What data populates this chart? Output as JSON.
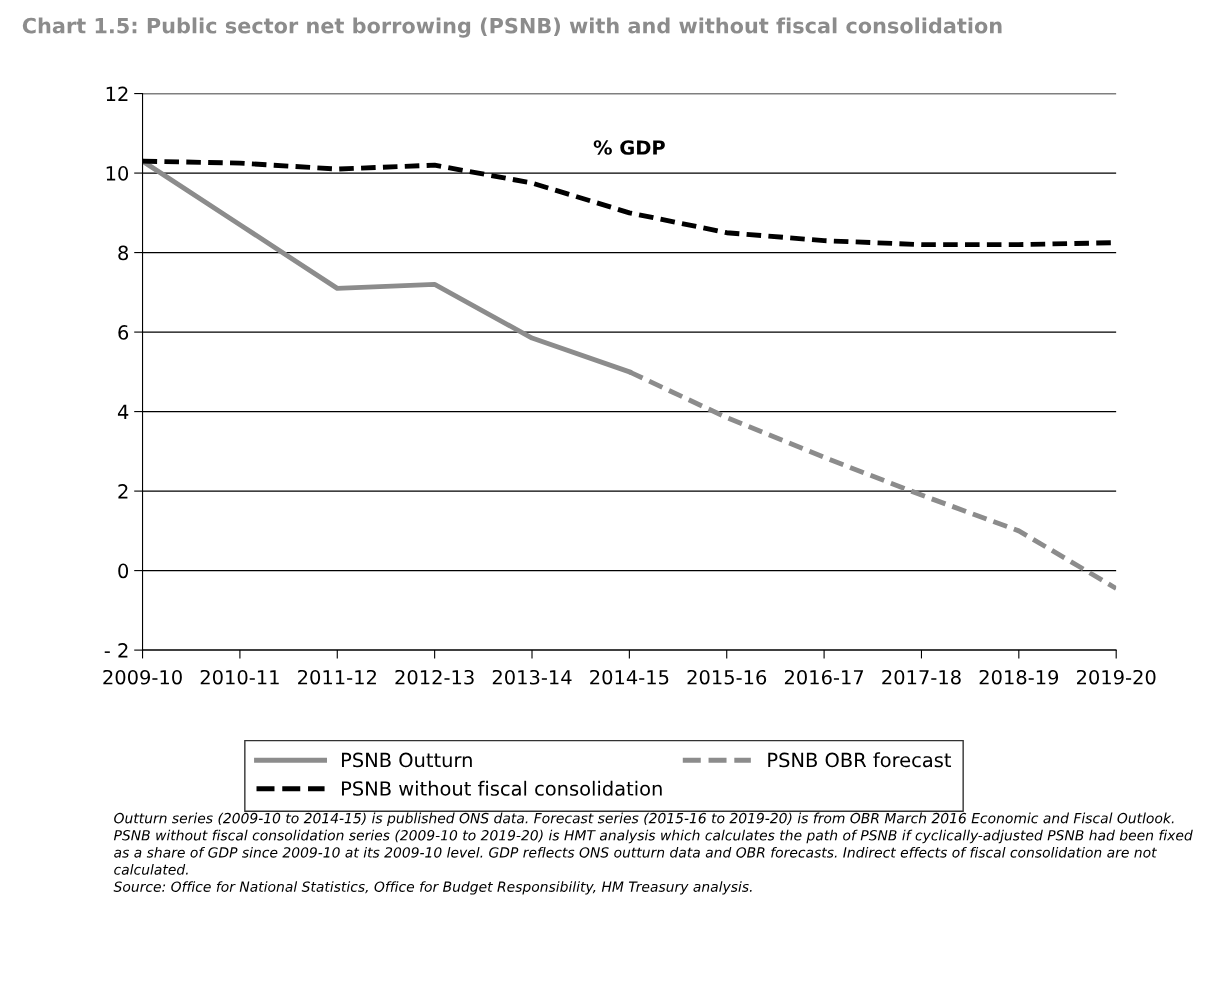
{
  "chart_data": {
    "type": "line",
    "title": "Chart 1.5: Public sector net borrowing (PSNB) with and without fiscal consolidation",
    "categories": [
      "2009-10",
      "2010-11",
      "2011-12",
      "2012-13",
      "2013-14",
      "2014-15",
      "2015-16",
      "2016-17",
      "2017-18",
      "2018-19",
      "2019-20"
    ],
    "series": [
      {
        "name": "PSNB Outturn",
        "color": "#8c8c8c",
        "line_style": "solid",
        "values": [
          10.3,
          8.7,
          7.1,
          7.2,
          5.85,
          5.0,
          null,
          null,
          null,
          null,
          null
        ]
      },
      {
        "name": "PSNB OBR forecast",
        "color": "#8c8c8c",
        "line_style": "dashed",
        "values": [
          null,
          null,
          null,
          null,
          null,
          5.0,
          3.85,
          2.85,
          1.9,
          1.0,
          -0.45
        ]
      },
      {
        "name": "PSNB without fiscal consolidation",
        "color": "#000000",
        "line_style": "dashed",
        "values": [
          10.3,
          10.25,
          10.1,
          10.2,
          9.75,
          9.0,
          8.5,
          8.3,
          8.2,
          8.2,
          8.25
        ]
      }
    ],
    "ylim": [
      -2,
      12
    ],
    "yticks": [
      {
        "value": -2,
        "label": "- 2"
      },
      0,
      2,
      4,
      6,
      8,
      10,
      12
    ],
    "grid": "y",
    "legend": "bottom",
    "marker": "none",
    "annotations": [
      "% GDP",
      "Outturn series (2009-10 to 2014-15) is published ONS data. Forecast series (2015-16 to 2019-20) is from OBR March 2016 Economic and Fiscal Outlook. PSNB without fiscal consolidation series (2009-10 to 2019-20) is HMT analysis which calculates the path of PSNB if cyclically-adjusted PSNB had been fixed as a share of GDP since 2009-10 at its 2009-10 level. GDP reflects ONS outturn data and OBR forecasts. Indirect effects of fiscal consolidation are not calculated.\nSource: Office for National Statistics, Office for Budget Responsibility, HM Treasury analysis."
    ]
  }
}
